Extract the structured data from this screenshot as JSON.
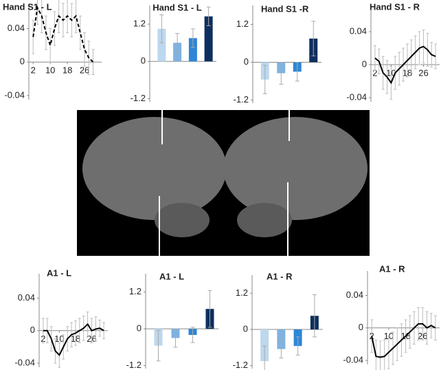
{
  "chart_data": [
    {
      "type": "line",
      "title": "Hand S1 - L",
      "dashed": true,
      "color": "#000000",
      "x": [
        2,
        4,
        6,
        8,
        10,
        12,
        14,
        16,
        18,
        20,
        22,
        24,
        26,
        28,
        30
      ],
      "values": [
        0.03,
        0.065,
        0.055,
        0.035,
        0.02,
        0.04,
        0.055,
        0.05,
        0.055,
        0.05,
        0.055,
        0.035,
        0.015,
        0.005,
        0.0
      ],
      "errors": [
        0.02,
        0.02,
        0.02,
        0.02,
        0.02,
        0.02,
        0.02,
        0.02,
        0.02,
        0.02,
        0.02,
        0.02,
        0.02,
        0.02,
        0.015
      ],
      "xlim": [
        0,
        34
      ],
      "xticks": [
        2,
        10,
        18,
        26
      ],
      "ylim": [
        -0.045,
        0.07
      ],
      "yticks": [
        0.04,
        0,
        -0.04
      ]
    },
    {
      "type": "bar",
      "title": "Hand S1 - L",
      "categories": [
        null,
        null,
        null,
        null
      ],
      "values": [
        1.05,
        0.6,
        0.75,
        1.45
      ],
      "errors": [
        0.45,
        0.3,
        0.3,
        0.3
      ],
      "colors": [
        "#bdd7ee",
        "#7fb2e0",
        "#2e86d6",
        "#0d2f5e"
      ],
      "ylim": [
        -1.3,
        1.8
      ],
      "yticks": [
        1.2,
        0,
        -1.2
      ]
    },
    {
      "type": "bar",
      "title": "Hand S1 -R",
      "categories": [
        null,
        null,
        null,
        null
      ],
      "values": [
        -0.55,
        -0.35,
        -0.3,
        0.75
      ],
      "errors": [
        0.45,
        0.35,
        0.3,
        0.55
      ],
      "colors": [
        "#bdd7ee",
        "#7fb2e0",
        "#2e86d6",
        "#0d2f5e"
      ],
      "ylim": [
        -1.3,
        1.8
      ],
      "yticks": [
        1.2,
        0,
        -1.2
      ]
    },
    {
      "type": "line",
      "title": "Hand S1 - R",
      "dashed": false,
      "color": "#000000",
      "x": [
        2,
        4,
        6,
        8,
        10,
        12,
        14,
        16,
        18,
        20,
        22,
        24,
        26,
        28,
        30,
        32
      ],
      "values": [
        0.008,
        0.004,
        -0.01,
        -0.015,
        -0.022,
        -0.01,
        -0.005,
        0.0,
        0.005,
        0.01,
        0.015,
        0.02,
        0.022,
        0.018,
        0.012,
        0.01
      ],
      "errors": [
        0.015,
        0.015,
        0.02,
        0.02,
        0.02,
        0.02,
        0.02,
        0.02,
        0.02,
        0.02,
        0.02,
        0.02,
        0.02,
        0.02,
        0.015,
        0.015
      ],
      "xlim": [
        0,
        34
      ],
      "xticks": [
        2,
        10,
        18,
        26
      ],
      "ylim": [
        -0.045,
        0.07
      ],
      "yticks": [
        0.04,
        0,
        -0.04
      ]
    },
    {
      "type": "line",
      "title": "A1 - L",
      "dashed": false,
      "color": "#000000",
      "x": [
        2,
        4,
        6,
        8,
        10,
        12,
        14,
        16,
        18,
        20,
        22,
        24,
        26,
        28,
        30,
        32
      ],
      "values": [
        0,
        0,
        -0.01,
        -0.025,
        -0.03,
        -0.02,
        -0.01,
        -0.005,
        -0.003,
        0,
        0.003,
        0.008,
        0.0,
        0.002,
        0.003,
        0
      ],
      "errors": [
        0.015,
        0.015,
        0.015,
        0.015,
        0.015,
        0.015,
        0.015,
        0.015,
        0.015,
        0.015,
        0.015,
        0.015,
        0.015,
        0.015,
        0.01,
        0.01
      ],
      "xlim": [
        0,
        34
      ],
      "xticks": [
        2,
        10,
        18,
        26
      ],
      "ylim": [
        -0.045,
        0.07
      ],
      "yticks": [
        0.04,
        0,
        -0.04
      ]
    },
    {
      "type": "bar",
      "title": "A1 - L",
      "categories": [
        null,
        null,
        null,
        null
      ],
      "values": [
        -0.55,
        -0.3,
        -0.2,
        0.65
      ],
      "errors": [
        0.5,
        0.3,
        0.25,
        0.6
      ],
      "colors": [
        "#bdd7ee",
        "#7fb2e0",
        "#2e86d6",
        "#0d2f5e"
      ],
      "ylim": [
        -1.3,
        1.8
      ],
      "yticks": [
        1.2,
        0,
        -1.2
      ]
    },
    {
      "type": "bar",
      "title": "A1 -  R",
      "categories": [
        null,
        null,
        null,
        null
      ],
      "values": [
        -1.05,
        -0.65,
        -0.55,
        0.45
      ],
      "errors": [
        0.5,
        0.3,
        0.3,
        0.7
      ],
      "colors": [
        "#bdd7ee",
        "#7fb2e0",
        "#2e86d6",
        "#0d2f5e"
      ],
      "ylim": [
        -1.3,
        1.8
      ],
      "yticks": [
        1.2,
        0,
        -1.2
      ]
    },
    {
      "type": "line",
      "title": "A1 - R",
      "dashed": false,
      "color": "#000000",
      "x": [
        2,
        4,
        6,
        8,
        10,
        12,
        14,
        16,
        18,
        20,
        22,
        24,
        26,
        28,
        30,
        32
      ],
      "values": [
        -0.01,
        -0.035,
        -0.036,
        -0.035,
        -0.03,
        -0.025,
        -0.02,
        -0.015,
        -0.01,
        -0.005,
        0,
        0.005,
        0.005,
        0,
        0.003,
        0
      ],
      "errors": [
        0.02,
        0.02,
        0.02,
        0.02,
        0.02,
        0.02,
        0.02,
        0.02,
        0.02,
        0.02,
        0.02,
        0.02,
        0.02,
        0.02,
        0.015,
        0.015
      ],
      "xlim": [
        0,
        34
      ],
      "xticks": [
        2,
        10,
        18,
        26
      ],
      "ylim": [
        -0.045,
        0.07
      ],
      "yticks": [
        0.04,
        0,
        -0.04
      ]
    }
  ]
}
